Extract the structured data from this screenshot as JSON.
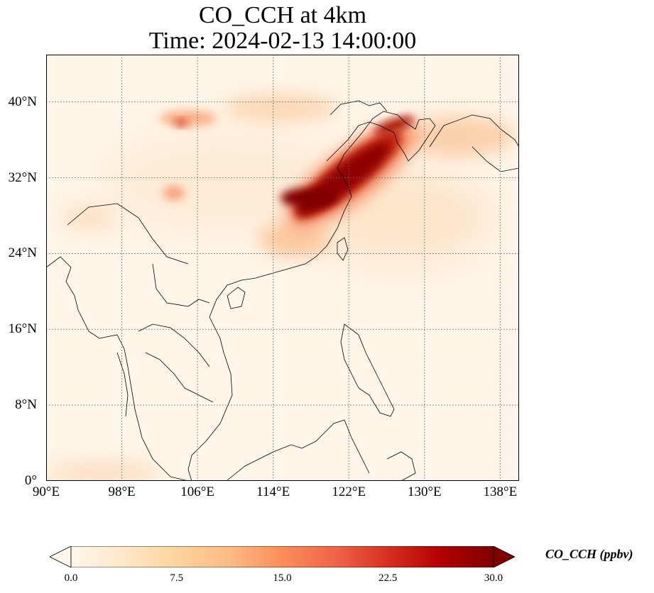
{
  "title": {
    "line1": "CO_CCH at 4km",
    "line2": "Time: 2024-02-13 14:00:00"
  },
  "map": {
    "projection": "PlateCarree",
    "lon_range": [
      90,
      140
    ],
    "lat_range": [
      0,
      45
    ],
    "grid": true,
    "grid_style": "dotted",
    "lat_ticks": [
      {
        "value": 40,
        "label": "40°N"
      },
      {
        "value": 32,
        "label": "32°N"
      },
      {
        "value": 24,
        "label": "24°N"
      },
      {
        "value": 16,
        "label": "16°N"
      },
      {
        "value": 8,
        "label": "8°N"
      },
      {
        "value": 0,
        "label": "0°"
      }
    ],
    "lon_ticks": [
      {
        "value": 90,
        "label": "90°E"
      },
      {
        "value": 98,
        "label": "98°E"
      },
      {
        "value": 106,
        "label": "106°E"
      },
      {
        "value": 114,
        "label": "114°E"
      },
      {
        "value": 122,
        "label": "122°E"
      },
      {
        "value": 130,
        "label": "130°E"
      },
      {
        "value": 138,
        "label": "138°E"
      }
    ],
    "plumes": [
      {
        "lon": [
          113,
          125
        ],
        "lat": [
          29,
          38
        ],
        "level": "max",
        "color": "#7f0000"
      },
      {
        "lon": [
          103,
          104
        ],
        "lat": [
          37.5,
          38.5
        ],
        "level": "high",
        "color": "#c81a10"
      },
      {
        "lon": [
          118,
          128
        ],
        "lat": [
          30,
          37
        ],
        "level": "medium",
        "color": "#fdbb84"
      },
      {
        "lon": [
          110,
          113
        ],
        "lat": [
          39,
          41
        ],
        "level": "low",
        "color": "#fde3c8"
      }
    ]
  },
  "colorbar": {
    "label": "CO_CCH (ppbv)",
    "min": 0.0,
    "max": 30.0,
    "extend": "both",
    "colormap": "OrRd",
    "colors": [
      "#fff7ec",
      "#fee8c8",
      "#fdd49e",
      "#fdbb84",
      "#fc8d59",
      "#ef6548",
      "#d7301f",
      "#b30000",
      "#7f0000"
    ],
    "ticks": [
      {
        "value": 0.0,
        "label": "0.0"
      },
      {
        "value": 7.5,
        "label": "7.5"
      },
      {
        "value": 15.0,
        "label": "15.0"
      },
      {
        "value": 22.5,
        "label": "22.5"
      },
      {
        "value": 30.0,
        "label": "30.0"
      }
    ]
  }
}
